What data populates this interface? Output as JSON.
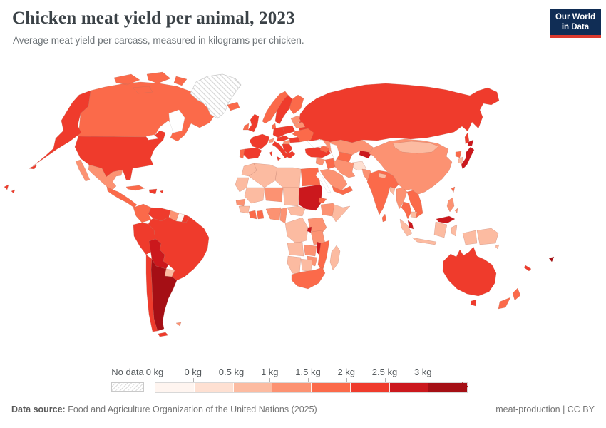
{
  "header": {
    "title": "Chicken meat yield per animal, 2023",
    "subtitle": "Average meat yield per carcass, measured in kilograms per chicken."
  },
  "logo": {
    "line1": "Our World",
    "line2": "in Data",
    "bg": "#102d55",
    "accent": "#dc3a2e"
  },
  "legend": {
    "no_data_label": "No data"
  },
  "footer": {
    "source_label": "Data source:",
    "source_text": " Food and Agriculture Organization of the United Nations (2025)",
    "attribution": "meat-production | CC BY"
  },
  "chart_data": {
    "type": "choropleth",
    "title": "Chicken meat yield per animal, 2023",
    "unit": "kg",
    "legend_position": "bottom",
    "bins": [
      {
        "label": "0 kg",
        "range": "0 kg",
        "color": "#fff5f0"
      },
      {
        "label": "0 kg",
        "range": "0-0.5 kg",
        "color": "#fee0d2"
      },
      {
        "label": "0.5 kg",
        "range": "0.5-1 kg",
        "color": "#fcbba1"
      },
      {
        "label": "1 kg",
        "range": "1-1.5 kg",
        "color": "#fc9272"
      },
      {
        "label": "1.5 kg",
        "range": "1.5-2 kg",
        "color": "#fb6a4a"
      },
      {
        "label": "2 kg",
        "range": "2-2.5 kg",
        "color": "#ef3b2c"
      },
      {
        "label": "2.5 kg",
        "range": "2.5-3 kg",
        "color": "#cb181d"
      },
      {
        "label": "3 kg",
        "range": "3+ kg",
        "color": "#a50f15"
      }
    ],
    "border_color": "#b5705f",
    "countries": [
      {
        "id": "russia",
        "name": "Russia",
        "bin": 5
      },
      {
        "id": "canada",
        "name": "Canada",
        "bin": 4
      },
      {
        "id": "usa",
        "name": "United States",
        "bin": 5
      },
      {
        "id": "greenland",
        "name": "Greenland",
        "bin": null
      },
      {
        "id": "iceland",
        "name": "Iceland",
        "bin": 4
      },
      {
        "id": "mexico",
        "name": "Mexico",
        "bin": 3
      },
      {
        "id": "centralamerica",
        "name": "Central America",
        "bin": 4
      },
      {
        "id": "cuba",
        "name": "Cuba",
        "bin": 4
      },
      {
        "id": "hispaniola",
        "name": "Hispaniola",
        "bin": 5
      },
      {
        "id": "colombia",
        "name": "Colombia",
        "bin": 4
      },
      {
        "id": "venezuela",
        "name": "Venezuela",
        "bin": 5
      },
      {
        "id": "guyana",
        "name": "Guyana",
        "bin": 3
      },
      {
        "id": "suriname",
        "name": "Suriname",
        "bin": 0
      },
      {
        "id": "frenchguiana",
        "name": "French Guiana",
        "bin": 5
      },
      {
        "id": "brazil",
        "name": "Brazil",
        "bin": 5
      },
      {
        "id": "peru",
        "name": "Peru",
        "bin": 5
      },
      {
        "id": "bolivia",
        "name": "Bolivia",
        "bin": 6
      },
      {
        "id": "paraguay",
        "name": "Paraguay",
        "bin": 2
      },
      {
        "id": "chile",
        "name": "Chile",
        "bin": 5
      },
      {
        "id": "argentina",
        "name": "Argentina",
        "bin": 7
      },
      {
        "id": "falklands",
        "name": "Falkland Islands",
        "bin": 3
      },
      {
        "id": "uk",
        "name": "United Kingdom",
        "bin": 5
      },
      {
        "id": "ireland",
        "name": "Ireland",
        "bin": 4
      },
      {
        "id": "norway",
        "name": "Norway",
        "bin": 4
      },
      {
        "id": "sweden",
        "name": "Sweden",
        "bin": 5
      },
      {
        "id": "finland",
        "name": "Finland",
        "bin": 4
      },
      {
        "id": "denmark",
        "name": "Denmark",
        "bin": 4
      },
      {
        "id": "baltics",
        "name": "Baltic states",
        "bin": 3
      },
      {
        "id": "poland",
        "name": "Poland",
        "bin": 5
      },
      {
        "id": "germany",
        "name": "Germany",
        "bin": 5
      },
      {
        "id": "france",
        "name": "France",
        "bin": 5
      },
      {
        "id": "spain",
        "name": "Spain",
        "bin": 5
      },
      {
        "id": "portugal",
        "name": "Portugal",
        "bin": 4
      },
      {
        "id": "italy",
        "name": "Italy",
        "bin": 5
      },
      {
        "id": "switzerland",
        "name": "Switzerland",
        "bin": 3
      },
      {
        "id": "czechaustria",
        "name": "Czechia & Austria",
        "bin": 5
      },
      {
        "id": "hungary",
        "name": "Hungary",
        "bin": 3
      },
      {
        "id": "balkans",
        "name": "Balkans",
        "bin": 5
      },
      {
        "id": "greece",
        "name": "Greece",
        "bin": 5
      },
      {
        "id": "romania",
        "name": "Romania",
        "bin": 5
      },
      {
        "id": "ukraine",
        "name": "Ukraine",
        "bin": 4
      },
      {
        "id": "belarus",
        "name": "Belarus",
        "bin": 3
      },
      {
        "id": "turkey",
        "name": "Turkey",
        "bin": 5
      },
      {
        "id": "kazakhstan",
        "name": "Kazakhstan",
        "bin": 3
      },
      {
        "id": "uzbekturkmen",
        "name": "Uzbekistan & Turkmenistan",
        "bin": 4
      },
      {
        "id": "tajikkyrgyz",
        "name": "Tajikistan & Kyrgyzstan",
        "bin": 6
      },
      {
        "id": "caucasus",
        "name": "Caucasus",
        "bin": 4
      },
      {
        "id": "china",
        "name": "China",
        "bin": 3
      },
      {
        "id": "mongolia",
        "name": "Mongolia",
        "bin": 2
      },
      {
        "id": "japan",
        "name": "Japan",
        "bin": 6
      },
      {
        "id": "southkorea",
        "name": "South Korea",
        "bin": 2
      },
      {
        "id": "northkorea",
        "name": "North Korea",
        "bin": 4
      },
      {
        "id": "afghanistan",
        "name": "Afghanistan",
        "bin": 1
      },
      {
        "id": "pakistan",
        "name": "Pakistan",
        "bin": 3
      },
      {
        "id": "india",
        "name": "India",
        "bin": 4
      },
      {
        "id": "nepal",
        "name": "Nepal",
        "bin": 2
      },
      {
        "id": "bangladesh",
        "name": "Bangladesh",
        "bin": 2
      },
      {
        "id": "srilanka",
        "name": "Sri Lanka",
        "bin": 4
      },
      {
        "id": "iran",
        "name": "Iran",
        "bin": 3
      },
      {
        "id": "iraq",
        "name": "Iraq",
        "bin": 4
      },
      {
        "id": "syria",
        "name": "Syria",
        "bin": 3
      },
      {
        "id": "saudiarabia",
        "name": "Saudi Arabia",
        "bin": 3
      },
      {
        "id": "yemenoman",
        "name": "Yemen & Oman",
        "bin": 4
      },
      {
        "id": "myanmar",
        "name": "Myanmar",
        "bin": 3
      },
      {
        "id": "thailand",
        "name": "Thailand",
        "bin": 4
      },
      {
        "id": "vietnamlaos",
        "name": "Vietnam & Laos",
        "bin": 4
      },
      {
        "id": "cambodia",
        "name": "Cambodia",
        "bin": 2
      },
      {
        "id": "malaysia",
        "name": "Malaysia",
        "bin": 6
      },
      {
        "id": "indonesia",
        "name": "Indonesia",
        "bin": 2
      },
      {
        "id": "philippines",
        "name": "Philippines",
        "bin": 3
      },
      {
        "id": "taiwan",
        "name": "Taiwan",
        "bin": 4
      },
      {
        "id": "morocco",
        "name": "Morocco",
        "bin": 2
      },
      {
        "id": "algeria",
        "name": "Algeria",
        "bin": 2
      },
      {
        "id": "libya",
        "name": "Libya",
        "bin": 2
      },
      {
        "id": "egypt",
        "name": "Egypt",
        "bin": 4
      },
      {
        "id": "mauritania",
        "name": "Mauritania",
        "bin": 2
      },
      {
        "id": "mali",
        "name": "Mali",
        "bin": 2
      },
      {
        "id": "niger",
        "name": "Niger",
        "bin": 3
      },
      {
        "id": "chad",
        "name": "Chad",
        "bin": 2
      },
      {
        "id": "sudan",
        "name": "Sudan",
        "bin": 6
      },
      {
        "id": "senegal",
        "name": "Senegal",
        "bin": 3
      },
      {
        "id": "guinea",
        "name": "Guinea",
        "bin": 2
      },
      {
        "id": "ivorycoast",
        "name": "Côte d'Ivoire",
        "bin": 4
      },
      {
        "id": "ghana",
        "name": "Ghana",
        "bin": 4
      },
      {
        "id": "nigeria",
        "name": "Nigeria",
        "bin": 3
      },
      {
        "id": "cameroon",
        "name": "Cameroon",
        "bin": 3
      },
      {
        "id": "centralafrica",
        "name": "Central African Republic",
        "bin": 2
      },
      {
        "id": "eritrea",
        "name": "Eritrea",
        "bin": 4
      },
      {
        "id": "ethiopia",
        "name": "Ethiopia",
        "bin": 3
      },
      {
        "id": "somalia",
        "name": "Somalia",
        "bin": 2
      },
      {
        "id": "drc",
        "name": "Democratic Republic of Congo",
        "bin": 2
      },
      {
        "id": "kenyauganda",
        "name": "Kenya & Uganda",
        "bin": 3
      },
      {
        "id": "rwanda",
        "name": "Rwanda",
        "bin": 6
      },
      {
        "id": "tanzania",
        "name": "Tanzania",
        "bin": 3
      },
      {
        "id": "angola",
        "name": "Angola",
        "bin": 2
      },
      {
        "id": "zambia",
        "name": "Zambia",
        "bin": 3
      },
      {
        "id": "malawi",
        "name": "Malawi",
        "bin": 6
      },
      {
        "id": "mozambique",
        "name": "Mozambique",
        "bin": 4
      },
      {
        "id": "zimbabwe",
        "name": "Zimbabwe",
        "bin": 3
      },
      {
        "id": "namibia",
        "name": "Namibia",
        "bin": 2
      },
      {
        "id": "botswana",
        "name": "Botswana",
        "bin": 2
      },
      {
        "id": "southafrica",
        "name": "South Africa",
        "bin": 4
      },
      {
        "id": "madagascar",
        "name": "Madagascar",
        "bin": 2
      },
      {
        "id": "australia",
        "name": "Australia",
        "bin": 5
      },
      {
        "id": "newzealand",
        "name": "New Zealand",
        "bin": 4
      },
      {
        "id": "papuanewguinea",
        "name": "Papua New Guinea",
        "bin": 2
      },
      {
        "id": "fiji",
        "name": "Fiji",
        "bin": 7
      },
      {
        "id": "newcaledonia",
        "name": "New Caledonia",
        "bin": 5
      }
    ]
  }
}
